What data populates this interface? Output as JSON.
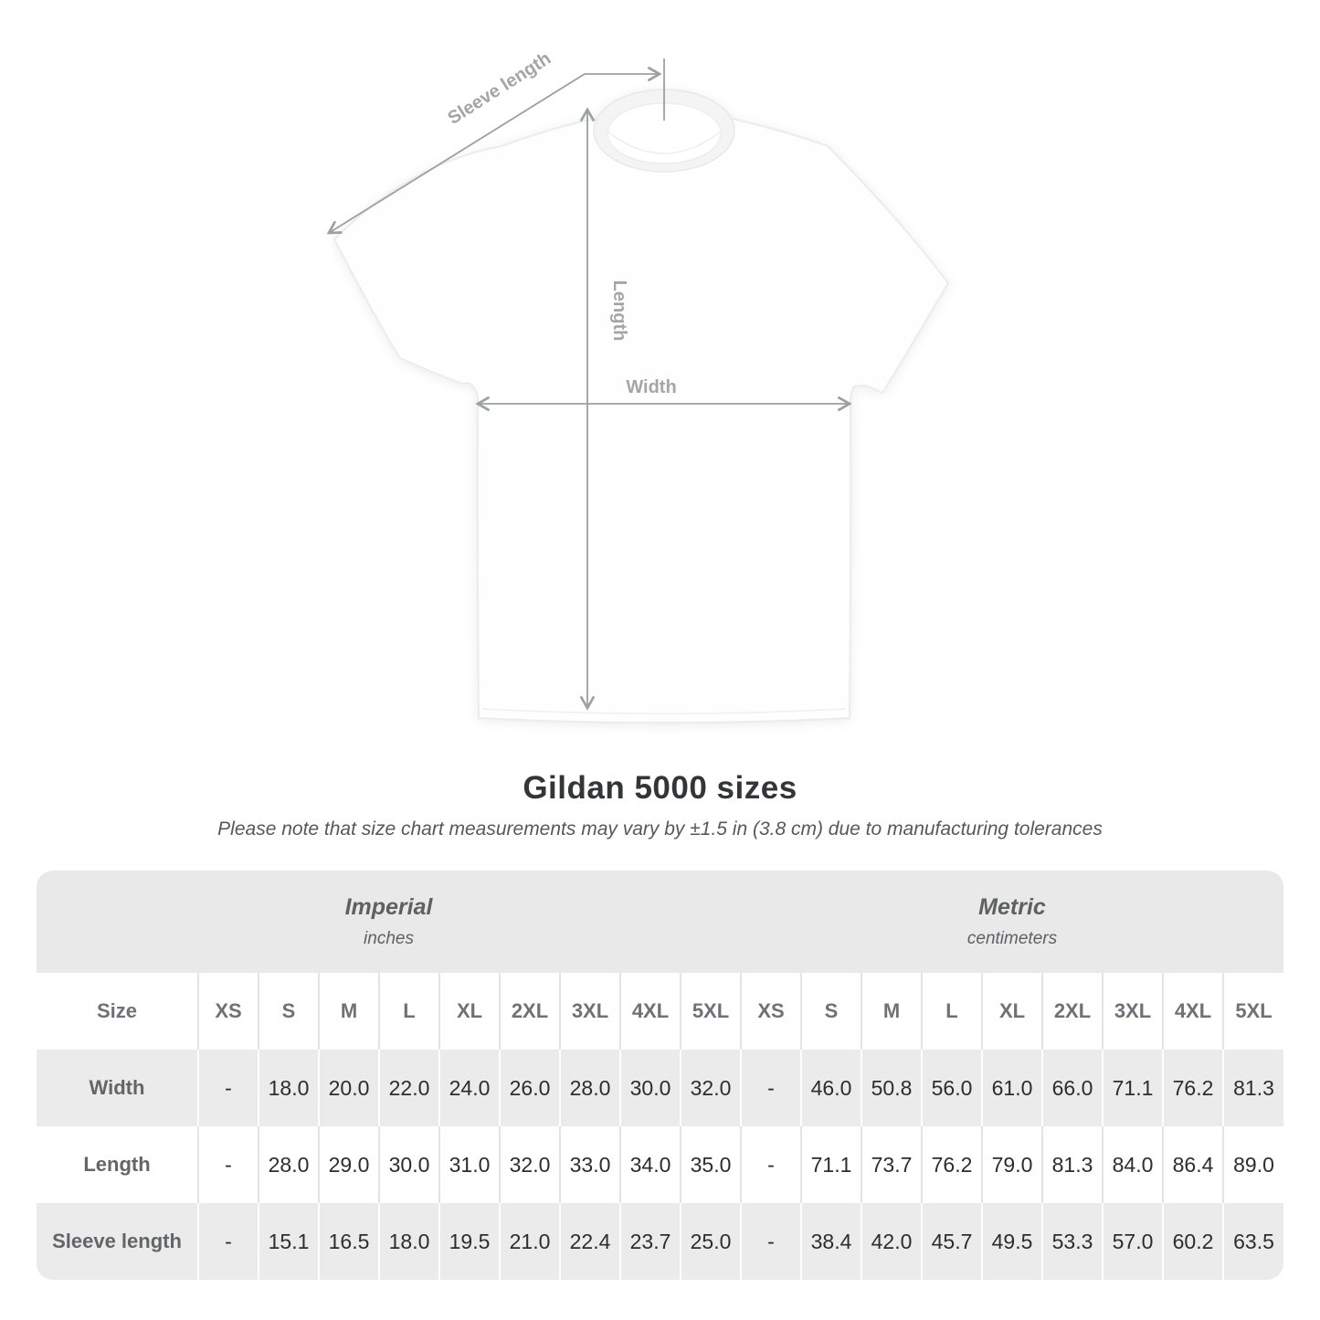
{
  "title": "Gildan 5000 sizes",
  "note": "Please note that size chart measurements may vary by ±1.5 in (3.8 cm) due to manufacturing tolerances",
  "diagram": {
    "sleeve_length_label": "Sleeve length",
    "length_label": "Length",
    "width_label": "Width"
  },
  "colors": {
    "band_gray": "#e9e9e9",
    "row_gray": "#ebebeb",
    "separator_white_row": "#e4e4e4",
    "value_text": "#2d2d2d",
    "label_text": "#636669",
    "measure_line": "#9aa0a3",
    "measure_label": "#a2a6a9",
    "title_text": "#333537"
  },
  "chart_data": {
    "type": "table",
    "title": "Gildan 5000 sizes",
    "subtitle": "Please note that size chart measurements may vary by ±1.5 in (3.8 cm) due to manufacturing tolerances",
    "column_groups": [
      {
        "name": "Imperial",
        "unit": "inches"
      },
      {
        "name": "Metric",
        "unit": "centimeters"
      }
    ],
    "corner_label": "Size",
    "sizes": [
      "XS",
      "S",
      "M",
      "L",
      "XL",
      "2XL",
      "3XL",
      "4XL",
      "5XL"
    ],
    "rows": [
      {
        "label": "Width",
        "imperial": [
          "-",
          "18.0",
          "20.0",
          "22.0",
          "24.0",
          "26.0",
          "28.0",
          "30.0",
          "32.0"
        ],
        "metric": [
          "-",
          "46.0",
          "50.8",
          "56.0",
          "61.0",
          "66.0",
          "71.1",
          "76.2",
          "81.3"
        ]
      },
      {
        "label": "Length",
        "imperial": [
          "-",
          "28.0",
          "29.0",
          "30.0",
          "31.0",
          "32.0",
          "33.0",
          "34.0",
          "35.0"
        ],
        "metric": [
          "-",
          "71.1",
          "73.7",
          "76.2",
          "79.0",
          "81.3",
          "84.0",
          "86.4",
          "89.0"
        ]
      },
      {
        "label": "Sleeve length",
        "imperial": [
          "-",
          "15.1",
          "16.5",
          "18.0",
          "19.5",
          "21.0",
          "22.4",
          "23.7",
          "25.0"
        ],
        "metric": [
          "-",
          "38.4",
          "42.0",
          "45.7",
          "49.5",
          "53.3",
          "57.0",
          "60.2",
          "63.5"
        ]
      }
    ]
  }
}
